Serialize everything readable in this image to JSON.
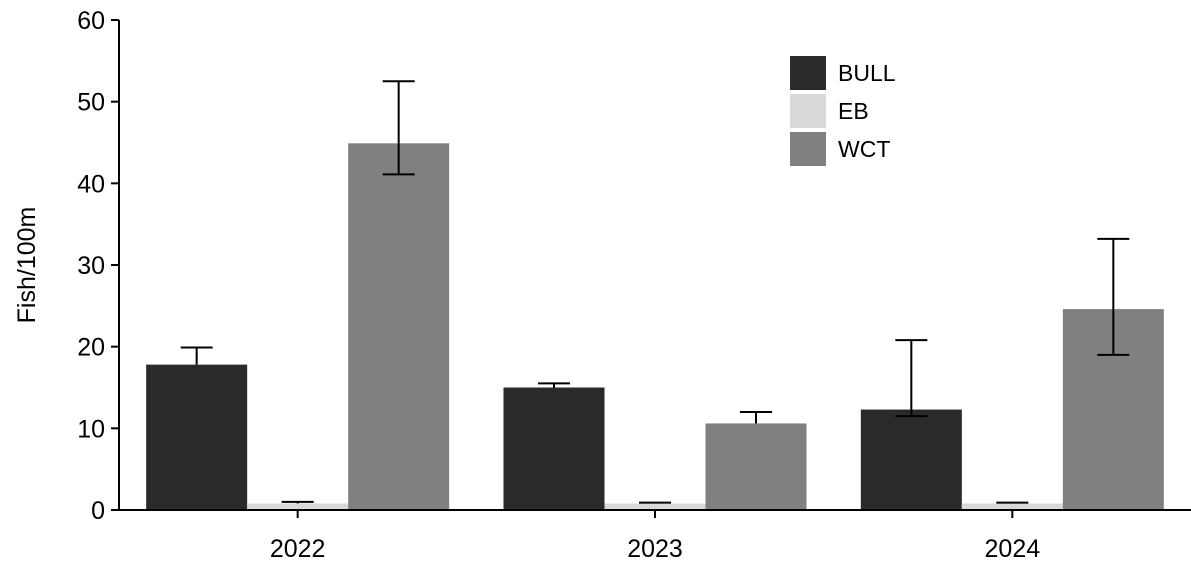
{
  "chart_data": {
    "type": "bar",
    "title": "",
    "xlabel": "",
    "ylabel": "Fish/100m",
    "ylim": [
      0,
      60
    ],
    "yticks": [
      0,
      10,
      20,
      30,
      40,
      50,
      60
    ],
    "categories": [
      "2022",
      "2023",
      "2024"
    ],
    "grid": false,
    "legend_position": "top-right",
    "series": [
      {
        "name": "BULL",
        "color": "#2a2a2a",
        "values": [
          17.8,
          15.0,
          12.3
        ],
        "error_upper": [
          19.9,
          15.5,
          20.8
        ],
        "error_lower": [
          17.8,
          15.0,
          11.5
        ]
      },
      {
        "name": "EB",
        "color": "#d9d9d9",
        "values": [
          0.8,
          0.8,
          0.8
        ],
        "error_upper": [
          1.0,
          0.9,
          0.9
        ],
        "error_lower": [
          0.8,
          0.8,
          0.8
        ]
      },
      {
        "name": "WCT",
        "color": "#808080",
        "values": [
          44.9,
          10.6,
          24.6
        ],
        "error_upper": [
          52.5,
          12.0,
          33.2
        ],
        "error_lower": [
          41.1,
          10.6,
          19.0
        ]
      }
    ]
  }
}
